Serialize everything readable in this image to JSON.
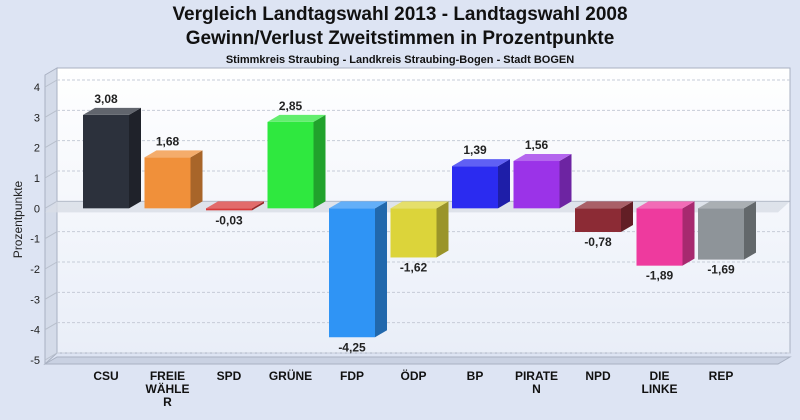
{
  "chart_data": {
    "type": "bar",
    "title": "Vergleich Landtagswahl 2013 - Landtagswahl 2008",
    "subtitle": "Gewinn/Verlust Zweitstimmen in Prozentpunkte",
    "subsubtitle": "Stimmkreis Straubing - Landkreis Straubing-Bogen - Stadt BOGEN",
    "ylabel": "Prozentpunkte",
    "xlabel": "",
    "ylim": [
      -5,
      4
    ],
    "yticks": [
      4,
      3,
      2,
      1,
      0,
      -1,
      -2,
      -3,
      -4,
      -5
    ],
    "grid": true,
    "categories": [
      "CSU",
      "FREIE WÄHLER",
      "SPD",
      "GRÜNE",
      "FDP",
      "ÖDP",
      "BP",
      "PIRATEN",
      "NPD",
      "DIE LINKE",
      "REP"
    ],
    "category_lines": [
      [
        "CSU"
      ],
      [
        "FREIE",
        "WÄHLE",
        "R"
      ],
      [
        "SPD"
      ],
      [
        "GRÜNE"
      ],
      [
        "FDP"
      ],
      [
        "ÖDP"
      ],
      [
        "BP"
      ],
      [
        "PIRATE",
        "N"
      ],
      [
        "NPD"
      ],
      [
        "DIE",
        "LINKE"
      ],
      [
        "REP"
      ]
    ],
    "values": [
      3.08,
      1.68,
      -0.03,
      2.85,
      -4.25,
      -1.62,
      1.39,
      1.56,
      -0.78,
      -1.89,
      -1.69
    ],
    "value_labels": [
      "3,08",
      "1,68",
      "-0,03",
      "2,85",
      "-4,25",
      "-1,62",
      "1,39",
      "1,56",
      "-0,78",
      "-1,89",
      "-1,69"
    ],
    "colors": [
      "#2c313c",
      "#f0903a",
      "#d83a3a",
      "#2fe83f",
      "#2f94f5",
      "#dcd43a",
      "#2b2bf0",
      "#9b33e8",
      "#8c2b35",
      "#ee3a9e",
      "#8e9499"
    ]
  }
}
